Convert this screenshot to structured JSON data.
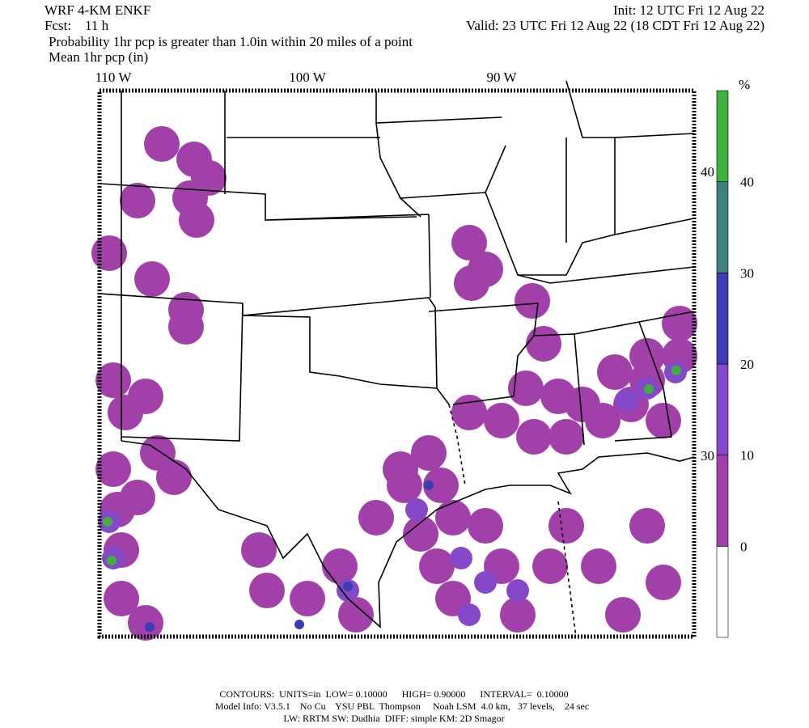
{
  "header": {
    "left": [
      "WRF 4-KM ENKF",
      "Fcst:    11 h"
    ],
    "right": [
      "Init: 12 UTC Fri 12 Aug 22",
      "Valid: 23 UTC Fri 12 Aug 22 (18 CDT Fri 12 Aug 22)"
    ],
    "description": [
      "Probability 1hr pcp is greater than 1.0in within 20 miles of a point",
      "Mean 1hr pcp (in)"
    ]
  },
  "map": {
    "longitude_labels": [
      "110 W",
      "100 W",
      "90 W"
    ],
    "latitude_labels": [
      "40 N",
      "30 N"
    ]
  },
  "colorbar": {
    "unit": "%",
    "levels": [
      0,
      10,
      20,
      30,
      40
    ],
    "colors": [
      "#ffffff",
      "#a040a8",
      "#8448c8",
      "#3c3cb4",
      "#3c8080",
      "#40b040"
    ]
  },
  "footer": [
    "CONTOURS:  UNITS=in  LOW= 0.10000      HIGH= 0.90000      INTERVAL=  0.10000",
    "Model Info: V3.5.1    No Cu    YSU PBL  Thompson     Noah LSM  4.0 km,   37 levels,    24 sec",
    "LW: RRTM SW: Dudhia  DIFF: simple KM: 2D Smagor"
  ]
}
